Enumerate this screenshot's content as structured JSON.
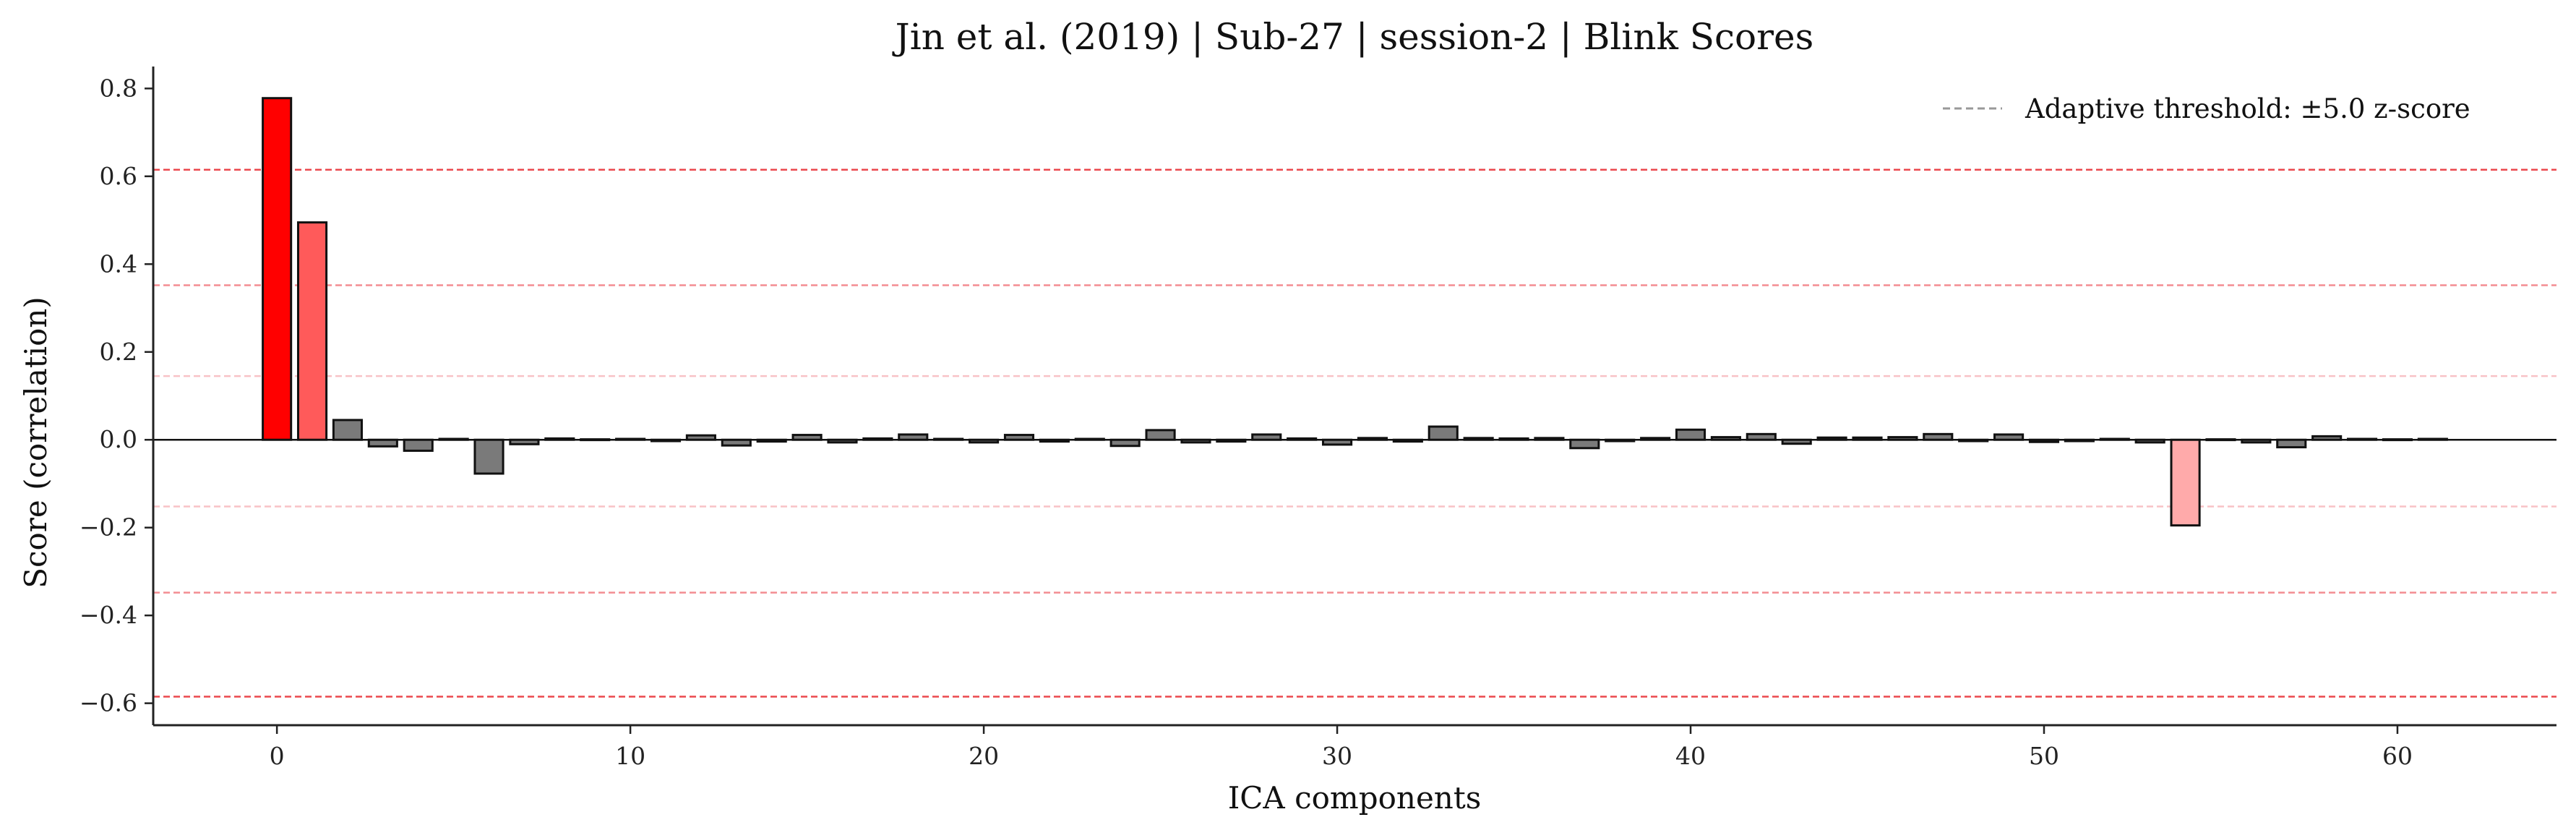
{
  "chart_data": {
    "type": "bar",
    "title": "Jin et al. (2019) | Sub-27 | session-2 | Blink Scores",
    "xlabel": "ICA components",
    "ylabel": "Score (correlation)",
    "xlim": [
      -3.5,
      64.5
    ],
    "ylim": [
      -0.65,
      0.85
    ],
    "xticks": [
      0,
      10,
      20,
      30,
      40,
      50,
      60
    ],
    "yticks": [
      -0.6,
      -0.4,
      -0.2,
      0.0,
      0.2,
      0.4,
      0.6,
      0.8
    ],
    "ytick_labels": [
      "−0.6",
      "−0.4",
      "−0.2",
      "0.0",
      "0.2",
      "0.4",
      "0.6",
      "0.8"
    ],
    "grid": false,
    "legend": {
      "placement": "top-right",
      "entries": [
        {
          "label": "Adaptive threshold: ±5.0 z-score",
          "style": "dashed",
          "color": "#999999"
        }
      ]
    },
    "threshold_lines": [
      {
        "y": 0.615,
        "color": "#e8282e",
        "opacity": 0.85
      },
      {
        "y": -0.585,
        "color": "#e8282e",
        "opacity": 0.85
      },
      {
        "y": 0.352,
        "color": "#ee5c64",
        "opacity": 0.7
      },
      {
        "y": -0.348,
        "color": "#ee5c64",
        "opacity": 0.7
      },
      {
        "y": 0.145,
        "color": "#f49aa0",
        "opacity": 0.6
      },
      {
        "y": -0.152,
        "color": "#f49aa0",
        "opacity": 0.6
      }
    ],
    "colors": {
      "strong": "#ff0000",
      "medium": "#ff5a5a",
      "weak": "#ffaaaa",
      "normal": "#7a7a7a",
      "edge": "#111111"
    },
    "x": [
      0,
      1,
      2,
      3,
      4,
      5,
      6,
      7,
      8,
      9,
      10,
      11,
      12,
      13,
      14,
      15,
      16,
      17,
      18,
      19,
      20,
      21,
      22,
      23,
      24,
      25,
      26,
      27,
      28,
      29,
      30,
      31,
      32,
      33,
      34,
      35,
      36,
      37,
      38,
      39,
      40,
      41,
      42,
      43,
      44,
      45,
      46,
      47,
      48,
      49,
      50,
      51,
      52,
      53,
      54,
      55,
      56,
      57,
      58,
      59,
      60,
      61
    ],
    "values": [
      0.778,
      0.495,
      0.045,
      -0.015,
      -0.025,
      0.002,
      -0.077,
      -0.01,
      0.003,
      0.001,
      0.002,
      -0.003,
      0.01,
      -0.013,
      -0.004,
      0.011,
      -0.006,
      0.003,
      0.012,
      0.002,
      -0.006,
      0.011,
      -0.004,
      0.002,
      -0.014,
      0.022,
      -0.006,
      -0.004,
      0.012,
      0.003,
      -0.011,
      0.004,
      -0.004,
      0.03,
      0.004,
      0.003,
      0.004,
      -0.019,
      -0.003,
      0.004,
      0.023,
      0.006,
      0.013,
      -0.009,
      0.005,
      0.005,
      0.006,
      0.013,
      -0.003,
      0.012,
      -0.005,
      -0.003,
      0.002,
      -0.006,
      -0.195,
      0.001,
      -0.006,
      -0.017,
      0.008,
      0.002,
      0.001,
      0.002
    ],
    "bar_colors": [
      "strong",
      "medium",
      "normal",
      "normal",
      "normal",
      "normal",
      "normal",
      "normal",
      "normal",
      "normal",
      "normal",
      "normal",
      "normal",
      "normal",
      "normal",
      "normal",
      "normal",
      "normal",
      "normal",
      "normal",
      "normal",
      "normal",
      "normal",
      "normal",
      "normal",
      "normal",
      "normal",
      "normal",
      "normal",
      "normal",
      "normal",
      "normal",
      "normal",
      "normal",
      "normal",
      "normal",
      "normal",
      "normal",
      "normal",
      "normal",
      "normal",
      "normal",
      "normal",
      "normal",
      "normal",
      "normal",
      "normal",
      "normal",
      "normal",
      "normal",
      "normal",
      "normal",
      "normal",
      "normal",
      "weak",
      "normal",
      "normal",
      "normal",
      "normal",
      "normal",
      "normal",
      "normal"
    ]
  }
}
